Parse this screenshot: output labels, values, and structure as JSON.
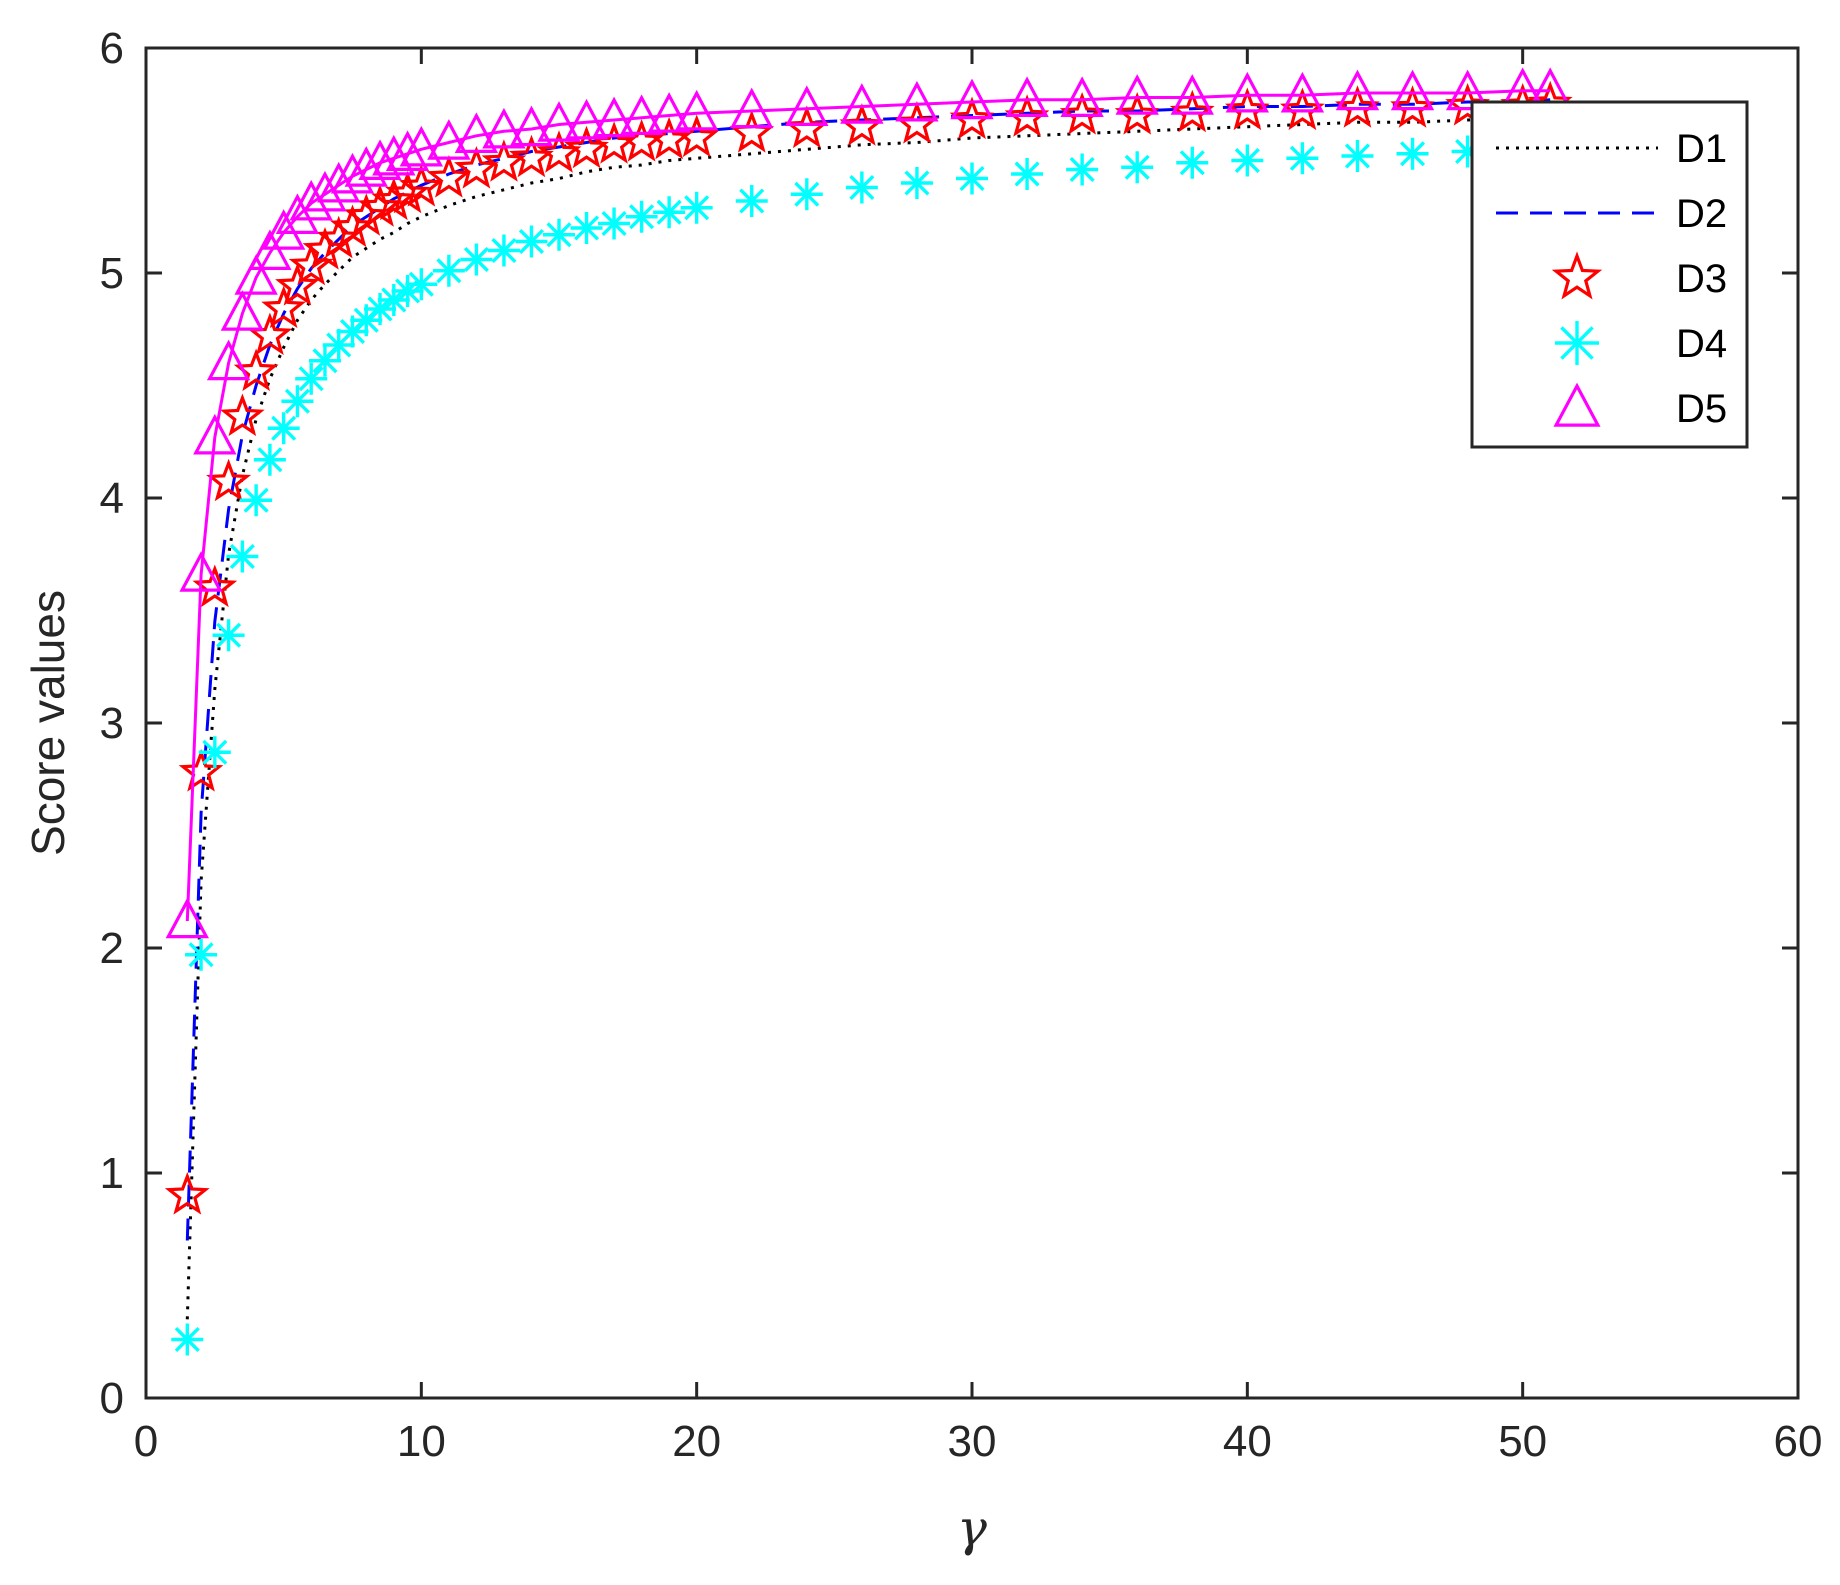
{
  "chart_data": {
    "type": "line",
    "title": "",
    "xlabel": "γ",
    "ylabel": "Score values",
    "xlim": [
      0,
      60
    ],
    "ylim": [
      0,
      6
    ],
    "xticks": [
      "0",
      "10",
      "20",
      "30",
      "40",
      "50",
      "60"
    ],
    "yticks": [
      "0",
      "1",
      "2",
      "3",
      "4",
      "5",
      "6"
    ],
    "grid": false,
    "legend_position": "top-right",
    "x": [
      1.5,
      2,
      2.5,
      3,
      3.5,
      4,
      4.5,
      5,
      5.5,
      6,
      6.5,
      7,
      7.5,
      8,
      8.5,
      9,
      9.5,
      10,
      11,
      12,
      13,
      14,
      15,
      16,
      17,
      18,
      19,
      20,
      22,
      24,
      26,
      28,
      30,
      32,
      34,
      36,
      38,
      40,
      42,
      44,
      46,
      48,
      50,
      51
    ],
    "series": [
      {
        "name": "D1",
        "style": "dotted",
        "marker": "none",
        "color": "#000000",
        "values": [
          0.35,
          2.3,
          3.15,
          3.75,
          4.1,
          4.35,
          4.53,
          4.67,
          4.79,
          4.88,
          4.95,
          5.01,
          5.07,
          5.11,
          5.15,
          5.18,
          5.22,
          5.25,
          5.3,
          5.34,
          5.37,
          5.4,
          5.42,
          5.45,
          5.47,
          5.48,
          5.5,
          5.51,
          5.53,
          5.55,
          5.57,
          5.58,
          5.6,
          5.61,
          5.62,
          5.63,
          5.64,
          5.65,
          5.66,
          5.67,
          5.67,
          5.68,
          5.69,
          5.69
        ]
      },
      {
        "name": "D2",
        "style": "dashed",
        "marker": "none",
        "color": "#0000ff",
        "values": [
          0.7,
          2.6,
          3.45,
          3.95,
          4.28,
          4.5,
          4.68,
          4.82,
          4.93,
          5.02,
          5.09,
          5.15,
          5.21,
          5.25,
          5.29,
          5.33,
          5.36,
          5.39,
          5.44,
          5.48,
          5.51,
          5.54,
          5.56,
          5.58,
          5.6,
          5.61,
          5.62,
          5.63,
          5.65,
          5.67,
          5.68,
          5.69,
          5.7,
          5.71,
          5.72,
          5.72,
          5.73,
          5.74,
          5.74,
          5.75,
          5.75,
          5.76,
          5.76,
          5.77
        ]
      },
      {
        "name": "D3",
        "style": "none",
        "marker": "pentagram",
        "color": "#ff0000",
        "values": [
          0.9,
          2.78,
          3.6,
          4.07,
          4.36,
          4.56,
          4.72,
          4.84,
          4.94,
          5.03,
          5.1,
          5.15,
          5.2,
          5.25,
          5.29,
          5.32,
          5.35,
          5.38,
          5.42,
          5.46,
          5.49,
          5.51,
          5.53,
          5.55,
          5.57,
          5.58,
          5.59,
          5.6,
          5.62,
          5.64,
          5.65,
          5.66,
          5.68,
          5.69,
          5.7,
          5.7,
          5.71,
          5.72,
          5.72,
          5.73,
          5.73,
          5.74,
          5.74,
          5.75
        ]
      },
      {
        "name": "D4",
        "style": "none",
        "marker": "asterisk",
        "color": "#00ffff",
        "values": [
          0.26,
          1.97,
          2.87,
          3.39,
          3.74,
          3.99,
          4.17,
          4.31,
          4.43,
          4.53,
          4.61,
          4.68,
          4.74,
          4.79,
          4.84,
          4.88,
          4.92,
          4.95,
          5.01,
          5.06,
          5.1,
          5.14,
          5.17,
          5.2,
          5.22,
          5.25,
          5.27,
          5.29,
          5.32,
          5.35,
          5.38,
          5.4,
          5.42,
          5.44,
          5.46,
          5.47,
          5.49,
          5.5,
          5.51,
          5.52,
          5.53,
          5.54,
          5.55,
          5.56
        ]
      },
      {
        "name": "D5",
        "style": "solid",
        "marker": "triangle",
        "color": "#ff00ff",
        "values": [
          2.12,
          3.66,
          4.27,
          4.6,
          4.82,
          4.98,
          5.09,
          5.18,
          5.25,
          5.31,
          5.35,
          5.39,
          5.43,
          5.46,
          5.49,
          5.51,
          5.53,
          5.55,
          5.58,
          5.61,
          5.63,
          5.64,
          5.66,
          5.67,
          5.68,
          5.69,
          5.7,
          5.71,
          5.72,
          5.73,
          5.74,
          5.75,
          5.76,
          5.77,
          5.77,
          5.78,
          5.78,
          5.79,
          5.79,
          5.8,
          5.8,
          5.8,
          5.81,
          5.81
        ]
      }
    ]
  }
}
